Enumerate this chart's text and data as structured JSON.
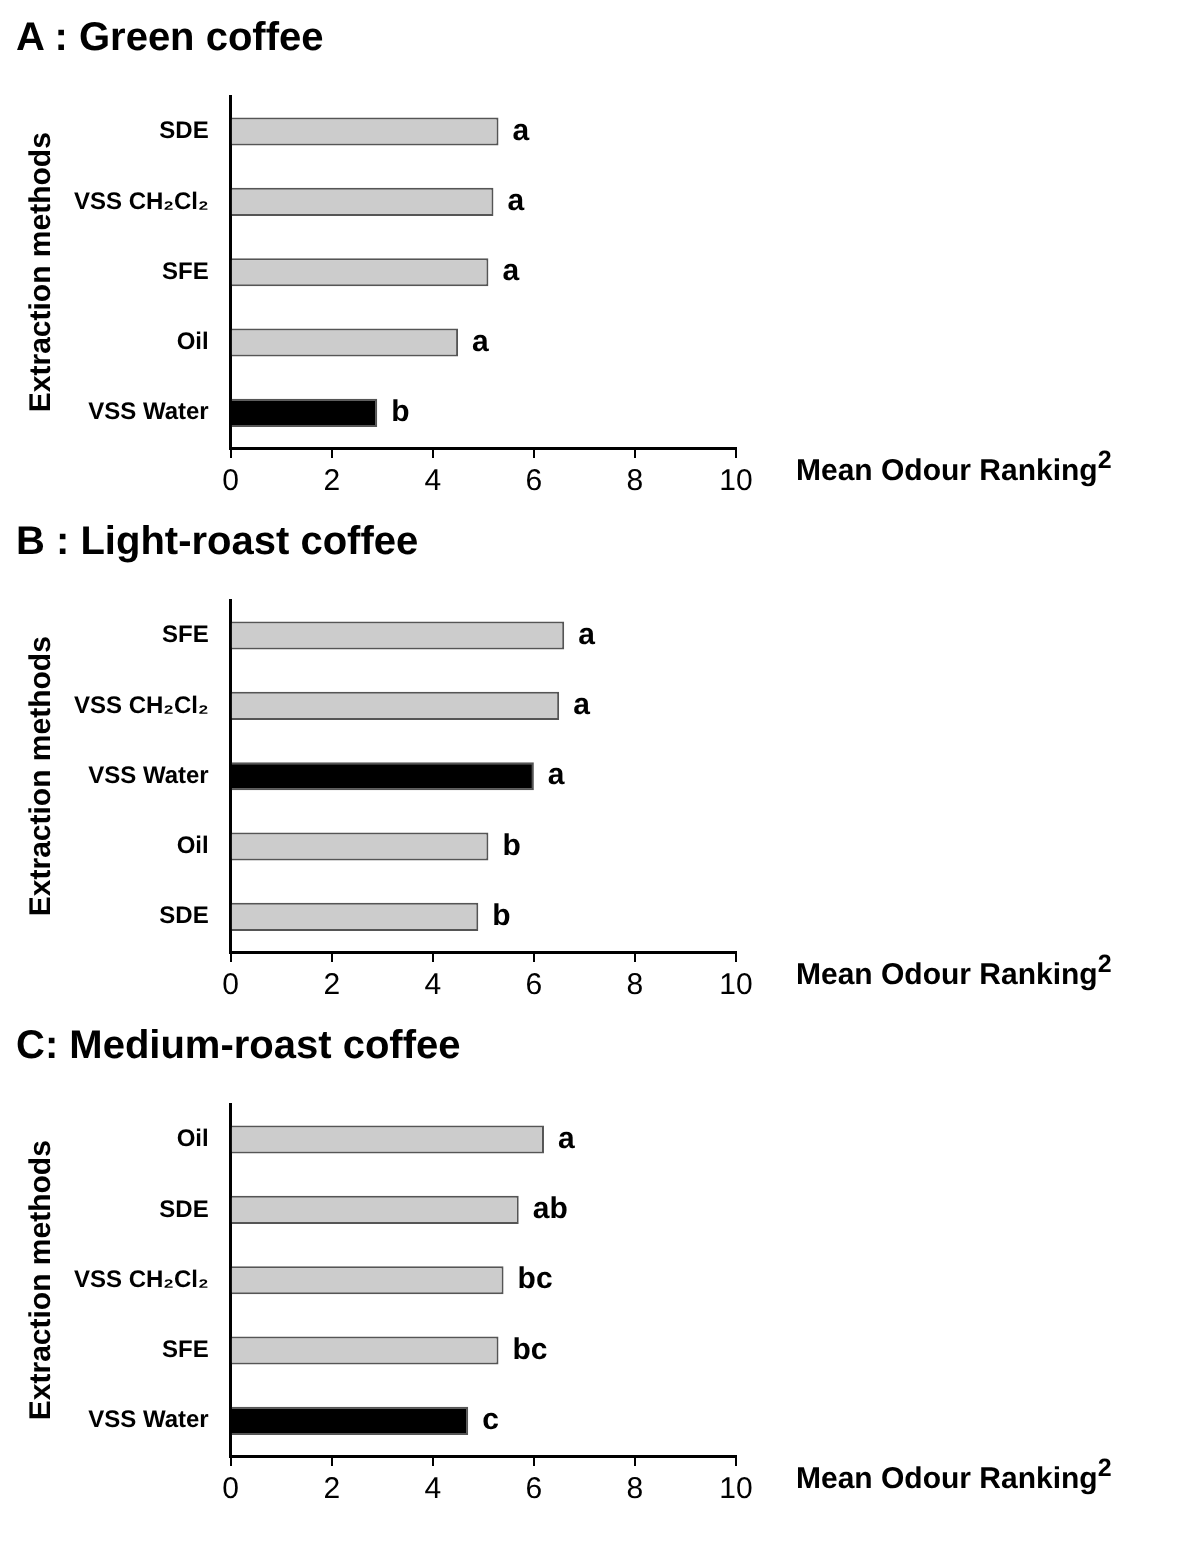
{
  "chart_data": [
    {
      "type": "bar",
      "orientation": "horizontal",
      "title": "A : Green coffee",
      "xlabel": "Mean Odour Ranking$^{2}$",
      "ylabel": "Extraction methods",
      "categories": [
        "SDE",
        "VSS CH₂Cl₂",
        "SFE",
        "Oil",
        "VSS Water"
      ],
      "values": [
        5.3,
        5.2,
        5.1,
        4.5,
        2.9
      ],
      "colors": [
        "#cccccc",
        "#cccccc",
        "#cccccc",
        "#cccccc",
        "#000000"
      ],
      "value_labels": [
        "a",
        "a",
        "a",
        "a",
        "b"
      ],
      "xlim": [
        0,
        10
      ],
      "xticks": [
        0,
        2,
        4,
        6,
        8,
        10
      ]
    },
    {
      "type": "bar",
      "orientation": "horizontal",
      "title": "B : Light-roast coffee",
      "xlabel": "Mean Odour Ranking$^{2}$",
      "ylabel": "Extraction methods",
      "categories": [
        "SFE",
        "VSS CH₂Cl₂",
        "VSS Water",
        "Oil",
        "SDE"
      ],
      "values": [
        6.6,
        6.5,
        6.0,
        5.1,
        4.9
      ],
      "colors": [
        "#cccccc",
        "#cccccc",
        "#000000",
        "#cccccc",
        "#cccccc"
      ],
      "value_labels": [
        "a",
        "a",
        "a",
        "b",
        "b"
      ],
      "xlim": [
        0,
        10
      ],
      "xticks": [
        0,
        2,
        4,
        6,
        8,
        10
      ]
    },
    {
      "type": "bar",
      "orientation": "horizontal",
      "title": "C: Medium-roast coffee",
      "xlabel": "Mean Odour Ranking$^{2}$",
      "ylabel": "Extraction methods",
      "categories": [
        "Oil",
        "SDE",
        "VSS CH₂Cl₂",
        "SFE",
        "VSS Water"
      ],
      "values": [
        6.2,
        5.7,
        5.4,
        5.3,
        4.7
      ],
      "colors": [
        "#cccccc",
        "#cccccc",
        "#cccccc",
        "#cccccc",
        "#000000"
      ],
      "value_labels": [
        "a",
        "ab",
        "bc",
        "bc",
        "c"
      ],
      "xlim": [
        0,
        10
      ],
      "xticks": [
        0,
        2,
        4,
        6,
        8,
        10
      ]
    }
  ]
}
